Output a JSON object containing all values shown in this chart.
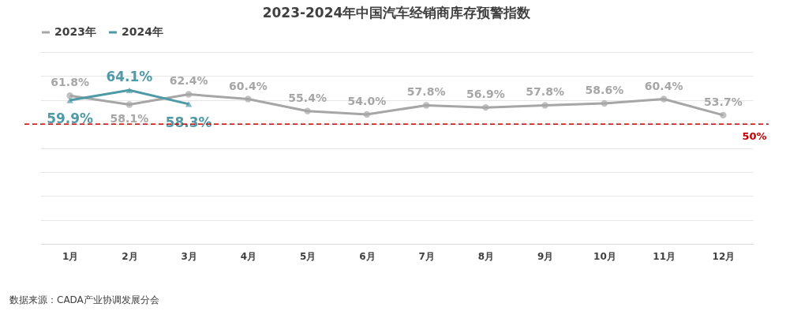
{
  "chart_data": {
    "type": "line",
    "title": "2023-2024年中国汽车经销商库存预警指数",
    "categories": [
      "1月",
      "2月",
      "3月",
      "4月",
      "5月",
      "6月",
      "7月",
      "8月",
      "9月",
      "10月",
      "11月",
      "12月"
    ],
    "series": [
      {
        "name": "2023年",
        "color": "#a6a6a6",
        "marker": "circle",
        "values": [
          61.8,
          58.1,
          62.4,
          60.4,
          55.4,
          54.0,
          57.8,
          56.9,
          57.8,
          58.6,
          60.4,
          53.7
        ],
        "value_labels": [
          "61.8%",
          "58.1%",
          "62.4%",
          "60.4%",
          "55.4%",
          "54.0%",
          "57.8%",
          "56.9%",
          "57.8%",
          "58.6%",
          "60.4%",
          "53.7%"
        ]
      },
      {
        "name": "2024年",
        "color": "#4f9aa6",
        "marker": "triangle",
        "values": [
          59.9,
          64.1,
          58.3,
          null,
          null,
          null,
          null,
          null,
          null,
          null,
          null,
          null
        ],
        "value_labels": [
          "59.9%",
          "64.1%",
          "58.3%",
          null,
          null,
          null,
          null,
          null,
          null,
          null,
          null,
          null
        ]
      }
    ],
    "ylim": [
      0,
      80
    ],
    "tick_labels": "x",
    "grid": "y",
    "legend": "top",
    "ref_lines": [
      {
        "axis": "y",
        "value": 50,
        "label": "50%",
        "color": "#c00000",
        "line_style": "dashed"
      }
    ],
    "annotations": [
      "数据来源：CADA产业协调发展分会"
    ]
  }
}
